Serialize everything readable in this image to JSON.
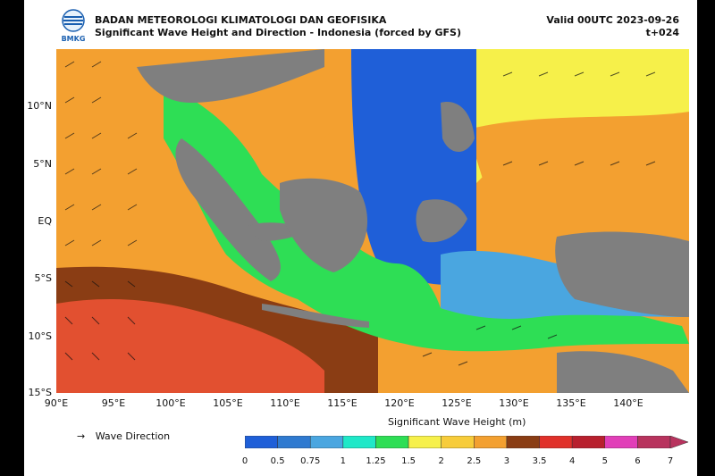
{
  "header": {
    "agency": "BADAN METEOROLOGI KLIMATOLOGI DAN GEOFISIKA",
    "product": "Significant Wave Height and Direction - Indonesia (forced by GFS)",
    "valid": "Valid 00UTC 2023-09-26",
    "lead": "t+024",
    "logo_text": "BMKG"
  },
  "axes": {
    "lat_labels": [
      "10°N",
      "5°N",
      "EQ",
      "5°S",
      "10°S",
      "15°S"
    ],
    "lon_labels": [
      "90°E",
      "95°E",
      "100°E",
      "105°E",
      "110°E",
      "115°E",
      "120°E",
      "125°E",
      "130°E",
      "135°E",
      "140°E"
    ]
  },
  "legend": {
    "arrow_symbol": "→",
    "label": "Wave Direction"
  },
  "colorbar": {
    "title": "Significant Wave Height (m)",
    "ticks": [
      "0",
      "0.5",
      "0.75",
      "1",
      "1.25",
      "1.5",
      "2",
      "2.5",
      "3",
      "3.5",
      "4",
      "5",
      "6",
      "7"
    ],
    "colors": [
      "#1f5fd8",
      "#2f7ad0",
      "#4aa6e0",
      "#1fe8c8",
      "#2ede55",
      "#f6f04a",
      "#f7cc3a",
      "#f3a030",
      "#8a3d14",
      "#e0302a",
      "#b8202e",
      "#e13fb8",
      "#b8335e"
    ]
  },
  "map_colors": {
    "land": "#7f7f7f",
    "very_low": "#1f5fd8",
    "low": "#4aa6e0",
    "mid": "#2ede55",
    "mid_high": "#f6f04a",
    "high": "#f3a030",
    "very_high": "#e25030",
    "brown": "#8a3d14"
  }
}
